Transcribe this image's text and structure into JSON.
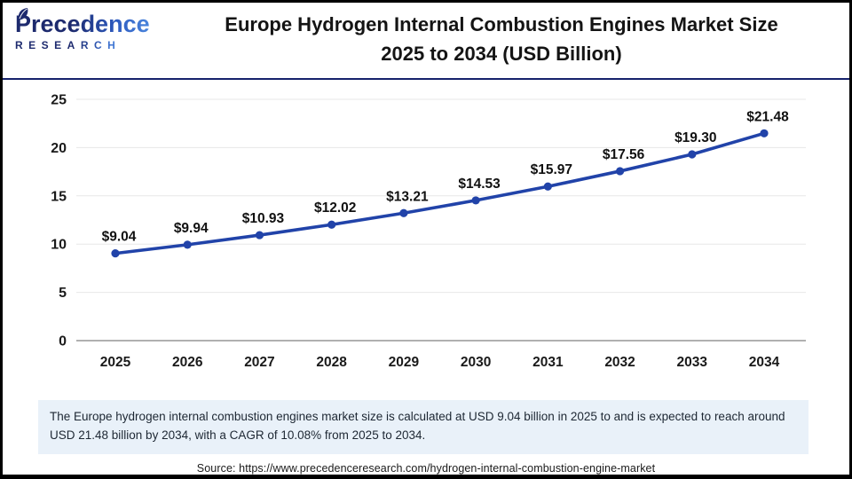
{
  "header": {
    "logo": {
      "name_top": "Precedence",
      "name_bottom": "RESEARCH"
    },
    "title_line1": "Europe Hydrogen Internal Combustion Engines Market Size",
    "title_line2": "2025 to 2034 (USD Billion)"
  },
  "chart_data": {
    "type": "line",
    "title": "Europe Hydrogen Internal Combustion Engines Market Size 2025 to 2034 (USD Billion)",
    "categories": [
      "2025",
      "2026",
      "2027",
      "2028",
      "2029",
      "2030",
      "2031",
      "2032",
      "2033",
      "2034"
    ],
    "values": [
      9.04,
      9.94,
      10.93,
      12.02,
      13.21,
      14.53,
      15.97,
      17.56,
      19.3,
      21.48
    ],
    "point_labels": [
      "$9.04",
      "$9.94",
      "$10.93",
      "$12.02",
      "$13.21",
      "$14.53",
      "$15.97",
      "$17.56",
      "$19.30",
      "$21.48"
    ],
    "xlabel": "",
    "ylabel": "",
    "ylim": [
      0,
      25
    ],
    "yticks": [
      0,
      5,
      10,
      15,
      20,
      25
    ],
    "grid": true,
    "legend": "none",
    "line_color": "#2143a9",
    "marker_color": "#2143a9",
    "gridline_color": "#e7e7e7",
    "axis_line_color": "#b0b0b0",
    "label_color": "#111111"
  },
  "footer": {
    "description": "The Europe hydrogen internal combustion engines market  size is calculated at USD 9.04 billion in 2025 to and is expected to reach around USD 21.48 billion by 2034, with a CAGR of 10.08% from 2025 to 2034.",
    "source": "Source: https://www.precedenceresearch.com/hydrogen-internal-combustion-engine-market"
  }
}
